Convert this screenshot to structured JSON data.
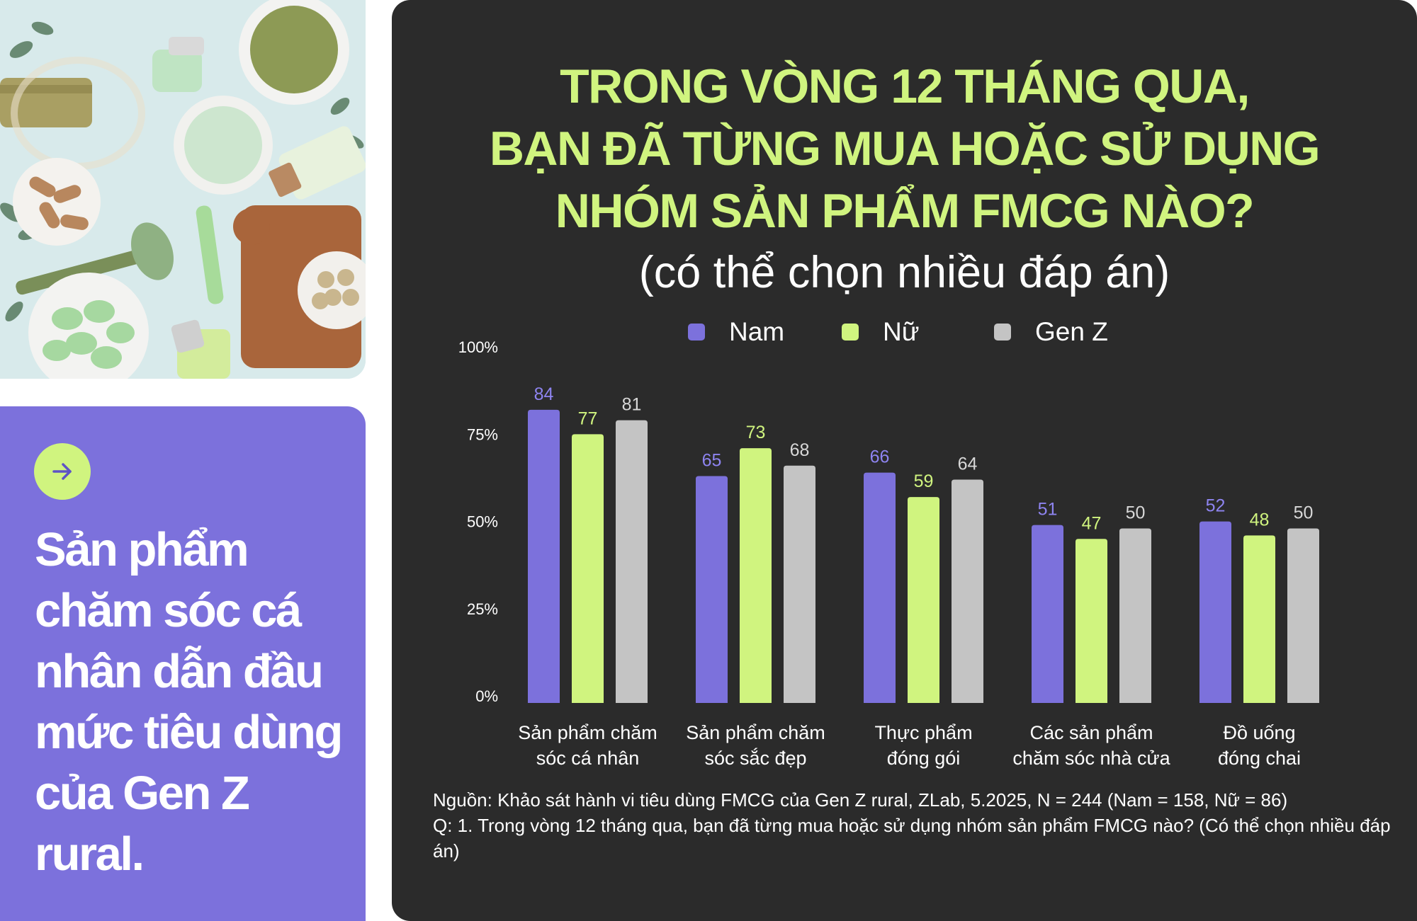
{
  "promo": {
    "icon": "arrow-right-icon",
    "headline": "Sản phẩm chăm sóc cá nhân dẫn đầu mức tiêu dùng của Gen Z rural."
  },
  "title": {
    "line1": "TRONG VÒNG 12 THÁNG QUA,",
    "line2": "BẠN ĐÃ TỪNG MUA HOẶC SỬ DỤNG",
    "line3": "NHÓM SẢN PHẨM FMCG NÀO?",
    "subtitle": "(có thể chọn nhiều đáp án)"
  },
  "legend": [
    {
      "label": "Nam",
      "color": "#7c71dc"
    },
    {
      "label": "Nữ",
      "color": "#d0f47f"
    },
    {
      "label": "Gen Z",
      "color": "#c4c4c4"
    }
  ],
  "chart_data": {
    "type": "bar",
    "categories": [
      [
        "Sản phẩm chăm",
        "sóc cá nhân"
      ],
      [
        "Sản phẩm chăm",
        "sóc sắc đẹp"
      ],
      [
        "Thực phẩm",
        "đóng gói"
      ],
      [
        "Các sản phẩm",
        "chăm sóc nhà cửa"
      ],
      [
        "Đồ uống",
        "đóng chai"
      ]
    ],
    "series": [
      {
        "name": "Nam",
        "color": "#7c71dc",
        "values": [
          84,
          65,
          66,
          51,
          52
        ]
      },
      {
        "name": "Nữ",
        "color": "#d0f47f",
        "values": [
          77,
          73,
          59,
          47,
          48
        ]
      },
      {
        "name": "Gen Z",
        "color": "#c4c4c4",
        "values": [
          81,
          68,
          64,
          50,
          50
        ]
      }
    ],
    "y_ticks": [
      "0%",
      "25%",
      "50%",
      "75%",
      "100%"
    ],
    "ylim": [
      0,
      100
    ],
    "grid": false,
    "legend_position": "top",
    "data_labels": true
  },
  "source": {
    "line1": "Nguồn: Khảo sát hành vi tiêu dùng FMCG của Gen Z rural, ZLab, 5.2025, N = 244 (Nam = 158, Nữ = 86)",
    "line2": "Q: 1. Trong vòng 12 tháng qua, bạn đã từng mua hoặc sử dụng nhóm sản phẩm FMCG nào? (Có thể chọn nhiều đáp án)"
  }
}
